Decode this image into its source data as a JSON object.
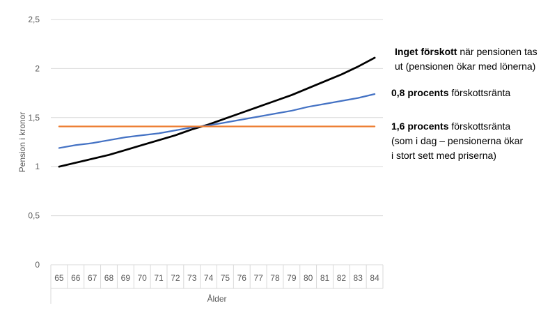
{
  "chart_data": {
    "type": "line",
    "title": "",
    "xlabel": "Ålder",
    "ylabel": "Pension i kronor",
    "categories": [
      "65",
      "66",
      "67",
      "68",
      "69",
      "70",
      "71",
      "72",
      "73",
      "74",
      "75",
      "76",
      "77",
      "78",
      "79",
      "80",
      "81",
      "82",
      "83",
      "84"
    ],
    "ylim": [
      0,
      2.5
    ],
    "yticks": [
      0,
      0.5,
      1,
      1.5,
      2,
      2.5
    ],
    "ytick_labels": [
      "0",
      "0,5",
      "1",
      "1,5",
      "2",
      "2,5"
    ],
    "grid": true,
    "legend": "none",
    "series": [
      {
        "color": "#000000",
        "values": [
          1.0,
          1.04,
          1.08,
          1.12,
          1.17,
          1.22,
          1.27,
          1.32,
          1.38,
          1.43,
          1.49,
          1.55,
          1.61,
          1.67,
          1.73,
          1.8,
          1.87,
          1.94,
          2.02,
          2.11
        ]
      },
      {
        "color": "#4472C4",
        "values": [
          1.19,
          1.22,
          1.24,
          1.27,
          1.3,
          1.32,
          1.34,
          1.37,
          1.4,
          1.42,
          1.45,
          1.48,
          1.51,
          1.54,
          1.57,
          1.61,
          1.64,
          1.67,
          1.7,
          1.74
        ]
      },
      {
        "color": "#ED7D31",
        "values": [
          1.41,
          1.41,
          1.41,
          1.41,
          1.41,
          1.41,
          1.41,
          1.41,
          1.41,
          1.41,
          1.41,
          1.41,
          1.41,
          1.41,
          1.41,
          1.41,
          1.41,
          1.41,
          1.41,
          1.41
        ]
      }
    ],
    "annotations": [
      {
        "lines": [
          {
            "bold": "Inget förskott",
            "normal": " när pensionen tas"
          },
          {
            "bold": "",
            "normal": "ut (pensionen ökar med lönerna)"
          }
        ]
      },
      {
        "lines": [
          {
            "bold": "0,8 procents",
            "normal": " förskottsränta"
          }
        ]
      },
      {
        "lines": [
          {
            "bold": "1,6 procents",
            "normal": " förskottsränta"
          },
          {
            "bold": "",
            "normal": "(som i dag – pensionerna ökar"
          },
          {
            "bold": "",
            "normal": "i stort sett med priserna)"
          }
        ]
      }
    ]
  }
}
